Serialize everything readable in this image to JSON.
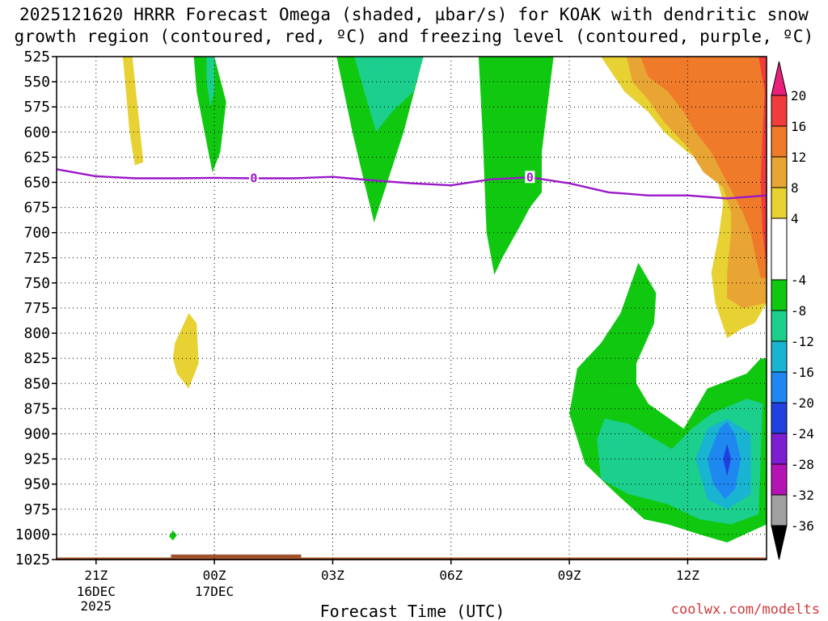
{
  "chart_data": {
    "type": "heatmap",
    "title": "2025121620 HRRR Forecast Omega (shaded, µbar/s) for KOAK with dendritic snow",
    "title_line2": "growth region (contoured, red, ºC) and freezing level (contoured, purple, ºC)",
    "xlabel": "Forecast Time (UTC)",
    "credit": "coolwx.com/modelts",
    "xlim": [
      20,
      38
    ],
    "ylim": [
      525,
      1025
    ],
    "x_ticks": [
      {
        "x": 21,
        "label": "21Z",
        "sub1": "16DEC",
        "sub2": "2025"
      },
      {
        "x": 24,
        "label": "00Z",
        "sub1": "17DEC",
        "sub2": ""
      },
      {
        "x": 27,
        "label": "03Z",
        "sub1": "",
        "sub2": ""
      },
      {
        "x": 30,
        "label": "06Z",
        "sub1": "",
        "sub2": ""
      },
      {
        "x": 33,
        "label": "09Z",
        "sub1": "",
        "sub2": ""
      },
      {
        "x": 36,
        "label": "12Z",
        "sub1": "",
        "sub2": ""
      }
    ],
    "y_ticks": [
      "525",
      "550",
      "575",
      "600",
      "625",
      "650",
      "675",
      "700",
      "725",
      "750",
      "775",
      "800",
      "825",
      "850",
      "875",
      "900",
      "925",
      "950",
      "975",
      "1000",
      "1025"
    ],
    "colorbar": {
      "labels": [
        "20",
        "16",
        "12",
        "8",
        "4",
        "-4",
        "-8",
        "-12",
        "-16",
        "-20",
        "-24",
        "-28",
        "-32",
        "-36"
      ],
      "bins": [
        {
          "from": 20,
          "to": 24,
          "color": "#e8207c"
        },
        {
          "from": 16,
          "to": 20,
          "color": "#f03c3c"
        },
        {
          "from": 12,
          "to": 16,
          "color": "#ef7b2a"
        },
        {
          "from": 8,
          "to": 12,
          "color": "#e8a534"
        },
        {
          "from": 4,
          "to": 8,
          "color": "#e8d132"
        },
        {
          "from": -4,
          "to": 4,
          "color": "#ffffff"
        },
        {
          "from": -8,
          "to": -4,
          "color": "#10c810"
        },
        {
          "from": -12,
          "to": -8,
          "color": "#1ccf8c"
        },
        {
          "from": -16,
          "to": -12,
          "color": "#19b4d2"
        },
        {
          "from": -20,
          "to": -16,
          "color": "#1e88f0"
        },
        {
          "from": -24,
          "to": -20,
          "color": "#2040e0"
        },
        {
          "from": -28,
          "to": -24,
          "color": "#7d1ed2"
        },
        {
          "from": -32,
          "to": -28,
          "color": "#b414b4"
        },
        {
          "from": -36,
          "to": -32,
          "color": "#a0a0a0"
        },
        {
          "from": -40,
          "to": -36,
          "color": "#000000"
        }
      ]
    },
    "freezing_level": {
      "color": "#9a18c8",
      "label": "0",
      "label_x": [
        25,
        32
      ],
      "points": [
        [
          20,
          637
        ],
        [
          21,
          644
        ],
        [
          22,
          646
        ],
        [
          23,
          646
        ],
        [
          24,
          645.5
        ],
        [
          25,
          646
        ],
        [
          26,
          646
        ],
        [
          27,
          644.5
        ],
        [
          28,
          648
        ],
        [
          29,
          651
        ],
        [
          30,
          653
        ],
        [
          31,
          647
        ],
        [
          32,
          645
        ],
        [
          33,
          651
        ],
        [
          34,
          660
        ],
        [
          35,
          663
        ],
        [
          36,
          663
        ],
        [
          37,
          666
        ],
        [
          38,
          663
        ]
      ]
    },
    "regions": [
      {
        "name": "pos-4-a",
        "color": "#e8d132",
        "pts": [
          [
            21.68,
            525
          ],
          [
            21.92,
            525
          ],
          [
            22.2,
            630
          ],
          [
            22.05,
            632
          ],
          [
            21.98,
            633
          ],
          [
            21.98,
            632
          ],
          [
            21.85,
            600
          ],
          [
            21.68,
            525
          ]
        ]
      },
      {
        "name": "pos-4-b",
        "color": "#e8d132",
        "pts": [
          [
            23.05,
            840
          ],
          [
            22.95,
            825
          ],
          [
            23.0,
            810
          ],
          [
            23.35,
            780
          ],
          [
            23.55,
            790
          ],
          [
            23.6,
            830
          ],
          [
            23.35,
            855
          ],
          [
            23.05,
            840
          ]
        ]
      },
      {
        "name": "neg-4-a",
        "color": "#10c810",
        "pts": [
          [
            23.48,
            525
          ],
          [
            24.0,
            525
          ],
          [
            24.3,
            570
          ],
          [
            24.15,
            620
          ],
          [
            23.95,
            640
          ],
          [
            23.75,
            600
          ],
          [
            23.55,
            560
          ],
          [
            23.48,
            525
          ]
        ]
      },
      {
        "name": "neg-8-a",
        "color": "#1ccf8c",
        "pts": [
          [
            23.8,
            525
          ],
          [
            24.0,
            525
          ],
          [
            24.0,
            560
          ],
          [
            23.9,
            575
          ],
          [
            23.8,
            550
          ],
          [
            23.8,
            525
          ]
        ]
      },
      {
        "name": "neg-4-b",
        "color": "#10c810",
        "pts": [
          [
            27.1,
            525
          ],
          [
            29.3,
            525
          ],
          [
            28.8,
            600
          ],
          [
            28.3,
            660
          ],
          [
            28.05,
            690
          ],
          [
            27.8,
            650
          ],
          [
            27.5,
            600
          ],
          [
            27.1,
            525
          ]
        ]
      },
      {
        "name": "neg-8-b",
        "color": "#1ccf8c",
        "pts": [
          [
            27.55,
            525
          ],
          [
            29.3,
            525
          ],
          [
            29.05,
            560
          ],
          [
            28.5,
            580
          ],
          [
            28.1,
            600
          ],
          [
            27.8,
            560
          ],
          [
            27.55,
            525
          ]
        ]
      },
      {
        "name": "neg-4-c",
        "color": "#10c810",
        "pts": [
          [
            30.7,
            525
          ],
          [
            32.6,
            525
          ],
          [
            32.3,
            620
          ],
          [
            32.3,
            660
          ],
          [
            32.0,
            675
          ],
          [
            31.8,
            690
          ],
          [
            31.3,
            725
          ],
          [
            31.1,
            742
          ],
          [
            30.9,
            700
          ],
          [
            30.8,
            600
          ],
          [
            30.7,
            525
          ]
        ]
      },
      {
        "name": "neg-4-d",
        "color": "#10c810",
        "pts": [
          [
            33.0,
            880
          ],
          [
            33.2,
            835
          ],
          [
            33.8,
            810
          ],
          [
            34.3,
            780
          ],
          [
            34.75,
            730
          ],
          [
            35.2,
            760
          ],
          [
            35.15,
            790
          ],
          [
            34.7,
            830
          ],
          [
            34.7,
            850
          ],
          [
            35.0,
            870
          ],
          [
            35.9,
            895
          ],
          [
            36.5,
            855
          ],
          [
            37.5,
            840
          ],
          [
            37.85,
            825
          ],
          [
            38,
            825
          ],
          [
            38,
            990
          ],
          [
            37.0,
            1008
          ],
          [
            36.3,
            1000
          ],
          [
            35.5,
            990
          ],
          [
            34.9,
            985
          ],
          [
            34.2,
            960
          ],
          [
            33.4,
            930
          ],
          [
            33.0,
            880
          ]
        ]
      },
      {
        "name": "neg-8-d",
        "color": "#1ccf8c",
        "pts": [
          [
            33.7,
            905
          ],
          [
            33.9,
            885
          ],
          [
            34.5,
            890
          ],
          [
            35.6,
            915
          ],
          [
            36.1,
            895
          ],
          [
            36.6,
            880
          ],
          [
            37.5,
            865
          ],
          [
            37.9,
            870
          ],
          [
            37.8,
            980
          ],
          [
            37.1,
            990
          ],
          [
            36.3,
            985
          ],
          [
            35.5,
            970
          ],
          [
            34.5,
            960
          ],
          [
            33.8,
            945
          ],
          [
            33.7,
            905
          ]
        ]
      },
      {
        "name": "neg-12-d",
        "color": "#19b4d2",
        "pts": [
          [
            36.2,
            925
          ],
          [
            36.5,
            895
          ],
          [
            37.0,
            885
          ],
          [
            37.6,
            900
          ],
          [
            37.6,
            960
          ],
          [
            37.0,
            975
          ],
          [
            36.5,
            965
          ],
          [
            36.2,
            925
          ]
        ]
      },
      {
        "name": "neg-16-d",
        "color": "#1e88f0",
        "pts": [
          [
            36.5,
            925
          ],
          [
            36.8,
            895
          ],
          [
            37.0,
            888
          ],
          [
            37.2,
            900
          ],
          [
            37.35,
            925
          ],
          [
            37.2,
            955
          ],
          [
            36.95,
            965
          ],
          [
            36.65,
            950
          ],
          [
            36.5,
            925
          ]
        ]
      },
      {
        "name": "neg-20-d",
        "color": "#2040e0",
        "pts": [
          [
            36.9,
            925
          ],
          [
            37.0,
            910
          ],
          [
            37.1,
            925
          ],
          [
            37.0,
            942
          ],
          [
            36.9,
            925
          ]
        ]
      },
      {
        "name": "neg-4-e",
        "color": "#10c810",
        "pts": [
          [
            22.85,
            1002
          ],
          [
            22.95,
            996
          ],
          [
            23.05,
            1001
          ],
          [
            22.95,
            1006
          ],
          [
            22.85,
            1002
          ]
        ]
      },
      {
        "name": "pos-4-f",
        "color": "#e8d132",
        "pts": [
          [
            33.8,
            525
          ],
          [
            38,
            525
          ],
          [
            38,
            770
          ],
          [
            37.7,
            790
          ],
          [
            37.4,
            795
          ],
          [
            37.0,
            805
          ],
          [
            36.7,
            770
          ],
          [
            36.6,
            740
          ],
          [
            36.8,
            700
          ],
          [
            36.9,
            670
          ],
          [
            36.7,
            640
          ],
          [
            36.0,
            620
          ],
          [
            35.4,
            600
          ],
          [
            35.0,
            580
          ],
          [
            34.4,
            560
          ],
          [
            33.8,
            525
          ]
        ]
      },
      {
        "name": "pos-8-f",
        "color": "#e8a534",
        "pts": [
          [
            34.45,
            525
          ],
          [
            38,
            525
          ],
          [
            38,
            770
          ],
          [
            37.4,
            775
          ],
          [
            37.0,
            765
          ],
          [
            37.0,
            740
          ],
          [
            37.1,
            700
          ],
          [
            37.1,
            680
          ],
          [
            36.9,
            655
          ],
          [
            36.4,
            640
          ],
          [
            36.0,
            615
          ],
          [
            35.4,
            590
          ],
          [
            35.0,
            568
          ],
          [
            34.6,
            550
          ],
          [
            34.45,
            525
          ]
        ]
      },
      {
        "name": "pos-12-f",
        "color": "#ef7b2a",
        "pts": [
          [
            34.8,
            525
          ],
          [
            38,
            525
          ],
          [
            38,
            745
          ],
          [
            37.85,
            745
          ],
          [
            37.7,
            720
          ],
          [
            37.6,
            700
          ],
          [
            37.4,
            680
          ],
          [
            37.0,
            650
          ],
          [
            36.6,
            620
          ],
          [
            36.2,
            600
          ],
          [
            35.9,
            580
          ],
          [
            35.5,
            560
          ],
          [
            35.0,
            545
          ],
          [
            34.8,
            525
          ]
        ]
      },
      {
        "name": "pos-16-f",
        "color": "#f03c3c",
        "pts": [
          [
            37.8,
            525
          ],
          [
            38,
            525
          ],
          [
            38,
            735
          ],
          [
            37.9,
            700
          ],
          [
            37.85,
            650
          ],
          [
            37.9,
            600
          ],
          [
            37.95,
            560
          ],
          [
            37.8,
            525
          ]
        ]
      }
    ]
  }
}
